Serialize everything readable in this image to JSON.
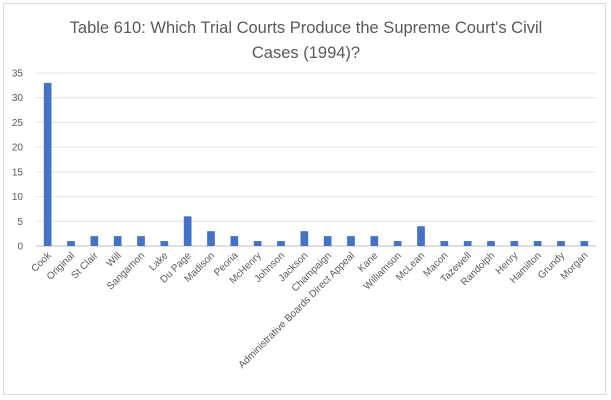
{
  "chart_data": {
    "type": "bar",
    "title": "Table 610: Which Trial Courts Produce the Supreme Court's Civil Cases (1994)?",
    "title_lines": [
      "Table 610: Which Trial Courts Produce the Supreme Court's Civil",
      "Cases (1994)?"
    ],
    "xlabel": "",
    "ylabel": "",
    "ylim": [
      0,
      35
    ],
    "yticks": [
      "0",
      "5",
      "10",
      "15",
      "20",
      "25",
      "30",
      "35"
    ],
    "grid": true,
    "legend": "none",
    "bar_color": "#4472c4",
    "categories": [
      "Cook",
      "Original",
      "St Clair",
      "Will",
      "Sangamon",
      "Lake",
      "Du Page",
      "Madison",
      "Peoria",
      "McHenry",
      "Johnson",
      "Jackson",
      "Champaign",
      "Administrative Boards Direct Appeal",
      "Kane",
      "Williamson",
      "McLean",
      "Macon",
      "Tazewell",
      "Randolph",
      "Henry",
      "Hamilton",
      "Grundy",
      "Morgan"
    ],
    "values": [
      33,
      1,
      2,
      2,
      2,
      1,
      6,
      3,
      2,
      1,
      1,
      3,
      2,
      2,
      2,
      1,
      4,
      1,
      1,
      1,
      1,
      1,
      1,
      1
    ]
  }
}
